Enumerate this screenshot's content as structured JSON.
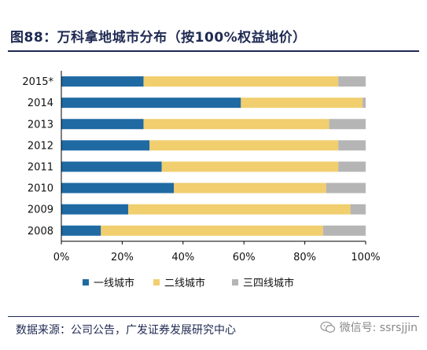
{
  "title": "图88：万科拿地城市分布（按100%权益地价）",
  "source": "数据来源：公司公告，广发证券发展研究中心",
  "watermark": "微信号: ssrsjjin",
  "chart_data": {
    "type": "bar",
    "orientation": "horizontal-stacked-percent",
    "categories": [
      "2015*",
      "2014",
      "2013",
      "2012",
      "2011",
      "2010",
      "2009",
      "2008"
    ],
    "series": [
      {
        "name": "一线城市",
        "color": "#1f6aa3",
        "values": [
          27,
          59,
          27,
          29,
          33,
          37,
          22,
          13
        ]
      },
      {
        "name": "二线城市",
        "color": "#f1ce6e",
        "values": [
          64,
          40,
          61,
          62,
          58,
          50,
          73,
          73
        ]
      },
      {
        "name": "三四线城市",
        "color": "#b5b5b5",
        "values": [
          9,
          1,
          12,
          9,
          9,
          13,
          5,
          14
        ]
      }
    ],
    "xticks": [
      "0%",
      "20%",
      "40%",
      "60%",
      "80%",
      "100%"
    ],
    "xlim": [
      0,
      100
    ],
    "legend": "bottom",
    "grid": false
  }
}
